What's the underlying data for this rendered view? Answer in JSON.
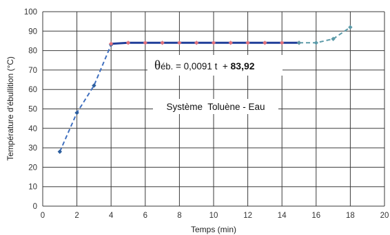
{
  "chart_data": {
    "type": "line",
    "xlabel": "Temps (min)",
    "ylabel": "Température d'ébullition (°C)",
    "xlim": [
      0,
      20
    ],
    "ylim": [
      0,
      100
    ],
    "xticks": [
      0,
      2,
      4,
      6,
      8,
      10,
      12,
      14,
      16,
      18,
      20
    ],
    "yticks": [
      0,
      10,
      20,
      30,
      40,
      50,
      60,
      70,
      80,
      90,
      100
    ],
    "grid": true,
    "series": [
      {
        "name": "",
        "style": "dashed",
        "color": "#3f6fbf",
        "marker_color": "#2c5e9e",
        "x": [
          1,
          2,
          3,
          4
        ],
        "y": [
          28,
          48,
          62,
          83
        ]
      },
      {
        "name": "",
        "style": "solid",
        "color": "#1f3d99",
        "marker_color": "#e0707a",
        "x": [
          4,
          5,
          6,
          7,
          8,
          9,
          10,
          11,
          12,
          13,
          14,
          15
        ],
        "y": [
          83.5,
          84,
          84,
          84,
          84,
          84,
          84,
          84,
          84,
          84,
          84,
          84
        ]
      },
      {
        "name": "",
        "style": "dashed",
        "color": "#5b9aa8",
        "marker_color": "#5b9aa8",
        "x": [
          15,
          16,
          17,
          18
        ],
        "y": [
          84,
          84,
          86,
          92
        ]
      }
    ],
    "annotations": {
      "equation": {
        "theta": "θ",
        "sub": "éb.",
        "middle": " = 0,0091 t  + ",
        "bold": "83,92"
      },
      "system": "Système  Toluène - Eau"
    }
  }
}
